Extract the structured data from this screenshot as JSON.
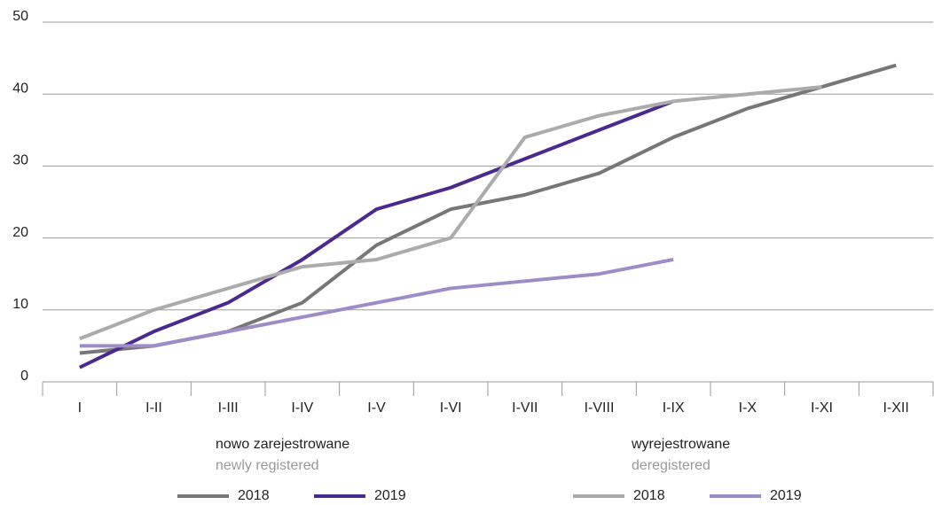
{
  "chart_data": {
    "type": "line",
    "categories": [
      "I",
      "I-II",
      "I-III",
      "I-IV",
      "I-V",
      "I-VI",
      "I-VII",
      "I-VIII",
      "I-IX",
      "I-X",
      "I-XI",
      "I-XII"
    ],
    "ylim": [
      0,
      50
    ],
    "yticks": [
      0,
      10,
      20,
      30,
      40,
      50
    ],
    "grid": true,
    "series_groups": [
      {
        "title": "nowo zarejestrowane",
        "subtitle": "newly registered",
        "series": [
          {
            "name": "2018",
            "color": "#777777",
            "values": [
              4,
              5,
              7,
              11,
              19,
              24,
              26,
              29,
              34,
              38,
              41,
              44
            ]
          },
          {
            "name": "2019",
            "color": "#4a2a8c",
            "values": [
              2,
              7,
              11,
              17,
              24,
              27,
              31,
              35,
              39,
              null,
              null,
              null
            ]
          }
        ]
      },
      {
        "title": "wyrejestrowane",
        "subtitle": "deregistered",
        "series": [
          {
            "name": "2018",
            "color": "#ababab",
            "values": [
              6,
              10,
              13,
              16,
              17,
              20,
              34,
              37,
              39,
              40,
              41,
              null
            ]
          },
          {
            "name": "2019",
            "color": "#9d8cc6",
            "values": [
              5,
              5,
              7,
              9,
              11,
              13,
              14,
              15,
              17,
              null,
              null,
              null
            ]
          }
        ]
      }
    ]
  }
}
